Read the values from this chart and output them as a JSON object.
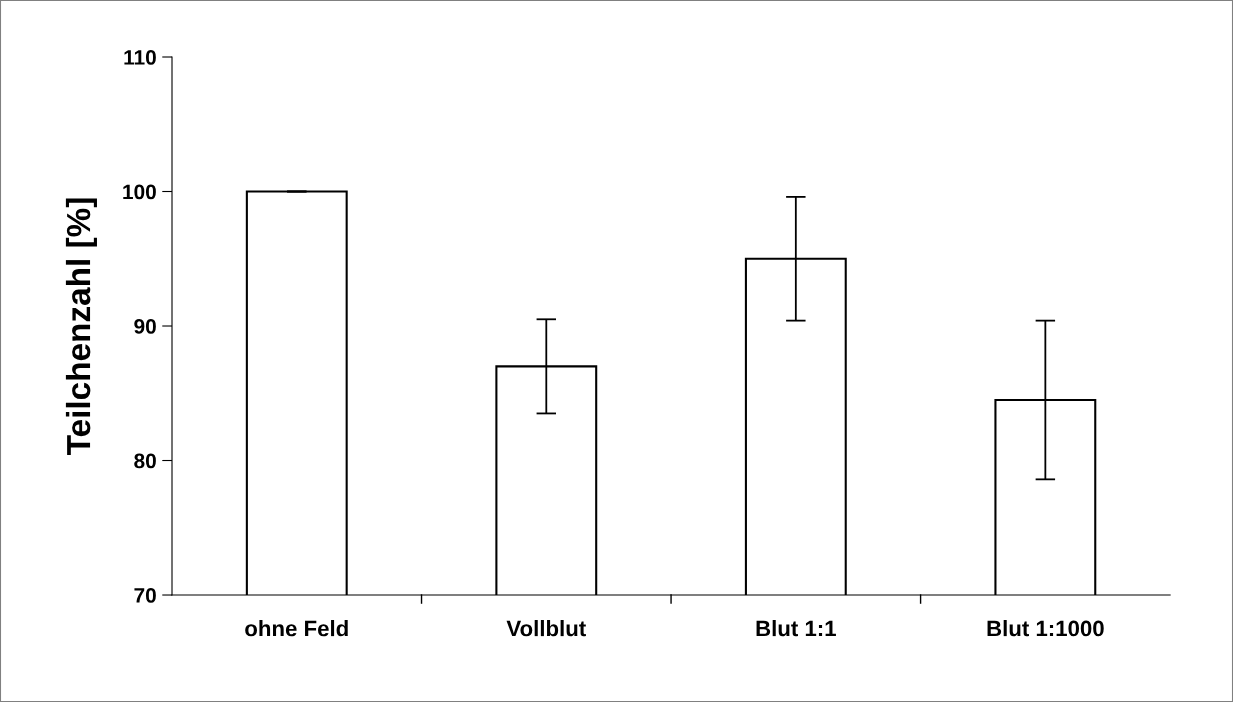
{
  "chart_data": {
    "type": "bar",
    "ylabel": "Teilchenzahl [%]",
    "categories": [
      "ohne Feld",
      "Vollblut",
      "Blut 1:1",
      "Blut 1:1000"
    ],
    "values": [
      100,
      87,
      95,
      84.5
    ],
    "errors": [
      0,
      3.5,
      4.6,
      5.9
    ],
    "color": "#ffffff",
    "ylim": [
      70,
      110
    ],
    "yticks": [
      70,
      80,
      90,
      100,
      110
    ],
    "grid": false,
    "legend": false
  }
}
